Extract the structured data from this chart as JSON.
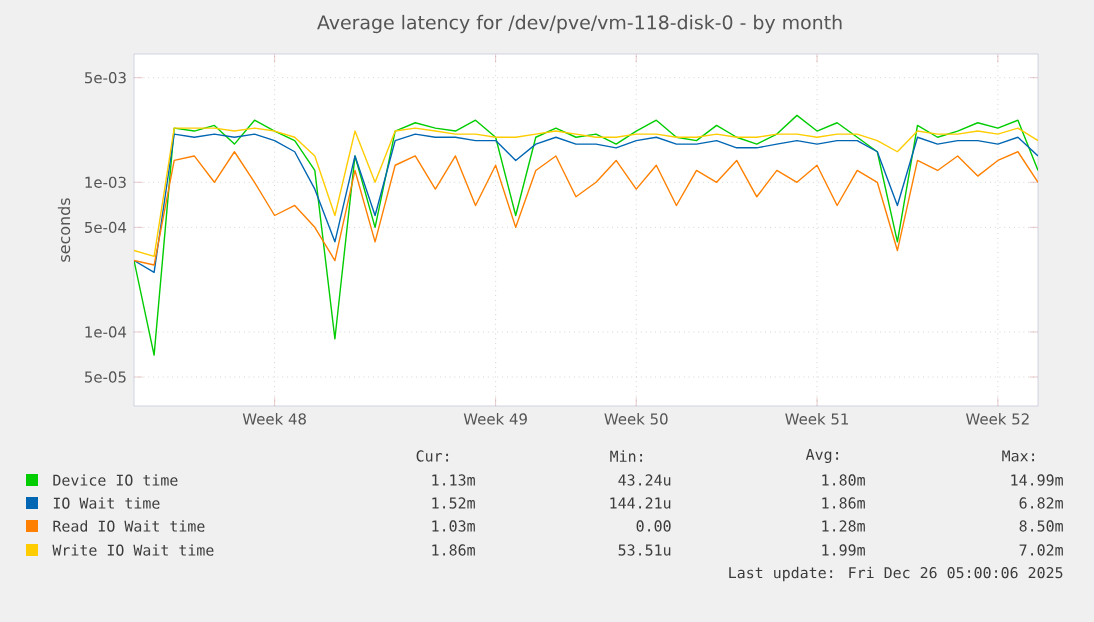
{
  "chart_data": {
    "type": "line",
    "title": "Average latency for /dev/pve/vm-118-disk-0 - by month",
    "ylabel": "seconds",
    "categories": [
      null,
      null,
      null,
      null,
      null,
      null,
      null,
      "Week 48",
      null,
      null,
      null,
      null,
      null,
      null,
      null,
      null,
      null,
      null,
      "Week 49",
      null,
      null,
      null,
      null,
      null,
      null,
      "Week 50",
      null,
      null,
      null,
      null,
      null,
      null,
      null,
      null,
      "Week 51",
      null,
      null,
      null,
      null,
      null,
      null,
      null,
      null,
      "Week 52",
      null,
      null
    ],
    "series": [
      {
        "name": "Device IO time",
        "color": "#00cc00",
        "values": [
          0.0003,
          7e-05,
          0.0023,
          0.0022,
          0.0024,
          0.0018,
          0.0026,
          0.0022,
          0.0019,
          0.0012,
          9e-05,
          0.0015,
          0.0005,
          0.0022,
          0.0025,
          0.0023,
          0.0022,
          0.0026,
          0.002,
          0.0006,
          0.002,
          0.0023,
          0.002,
          0.0021,
          0.0018,
          0.0022,
          0.0026,
          0.002,
          0.0019,
          0.0024,
          0.002,
          0.0018,
          0.0021,
          0.0028,
          0.0022,
          0.0025,
          0.002,
          0.0016,
          0.0004,
          0.0024,
          0.002,
          0.0022,
          0.0025,
          0.0023,
          0.0026,
          0.0012
        ]
      },
      {
        "name": "IO Wait time",
        "color": "#0066b3",
        "values": [
          0.0003,
          0.00025,
          0.0021,
          0.002,
          0.0021,
          0.002,
          0.0021,
          0.0019,
          0.0016,
          0.0009,
          0.0004,
          0.0015,
          0.0006,
          0.0019,
          0.0021,
          0.002,
          0.002,
          0.0019,
          0.0019,
          0.0014,
          0.0018,
          0.002,
          0.0018,
          0.0018,
          0.0017,
          0.0019,
          0.002,
          0.0018,
          0.0018,
          0.0019,
          0.0017,
          0.0017,
          0.0018,
          0.0019,
          0.0018,
          0.0019,
          0.0019,
          0.0016,
          0.0007,
          0.002,
          0.0018,
          0.0019,
          0.0019,
          0.0018,
          0.002,
          0.0015
        ]
      },
      {
        "name": "Read IO Wait time",
        "color": "#ff8000",
        "values": [
          0.0003,
          0.00028,
          0.0014,
          0.0015,
          0.001,
          0.0016,
          0.001,
          0.0006,
          0.0007,
          0.0005,
          0.0003,
          0.0012,
          0.0004,
          0.0013,
          0.0015,
          0.0009,
          0.0015,
          0.0007,
          0.0013,
          0.0005,
          0.0012,
          0.0015,
          0.0008,
          0.001,
          0.0014,
          0.0009,
          0.0013,
          0.0007,
          0.0012,
          0.001,
          0.0014,
          0.0008,
          0.0012,
          0.001,
          0.0013,
          0.0007,
          0.0012,
          0.001,
          0.00035,
          0.0014,
          0.0012,
          0.0015,
          0.0011,
          0.0014,
          0.0016,
          0.001
        ]
      },
      {
        "name": "Write IO Wait time",
        "color": "#ffcc00",
        "values": [
          0.00035,
          0.00032,
          0.0023,
          0.0023,
          0.0023,
          0.0022,
          0.0023,
          0.0022,
          0.002,
          0.0015,
          0.0006,
          0.0022,
          0.001,
          0.0022,
          0.0023,
          0.0022,
          0.0021,
          0.0021,
          0.002,
          0.002,
          0.0021,
          0.0022,
          0.0021,
          0.002,
          0.002,
          0.0021,
          0.0021,
          0.002,
          0.002,
          0.0021,
          0.002,
          0.002,
          0.0021,
          0.0021,
          0.002,
          0.0021,
          0.0021,
          0.0019,
          0.0016,
          0.0022,
          0.0021,
          0.0021,
          0.0022,
          0.0021,
          0.0023,
          0.0019
        ]
      }
    ],
    "ylim": [
      3.2e-05,
      0.0072
    ],
    "yticks": [
      {
        "value": 5e-05,
        "label": "5e-05"
      },
      {
        "value": 0.0001,
        "label": "1e-04"
      },
      {
        "value": 0.0005,
        "label": "5e-04"
      },
      {
        "value": 0.001,
        "label": "1e-03"
      },
      {
        "value": 0.005,
        "label": "5e-03"
      }
    ],
    "log": "y",
    "grid": true,
    "legend": "bottom",
    "marker": "none",
    "line_style": "solid",
    "annotations": [
      "Cur:",
      "Min:",
      "Avg:",
      "Max:",
      "1.13m",
      "43.24u",
      "1.80m",
      "14.99m",
      "1.52m",
      "144.21u",
      "1.86m",
      "6.82m",
      "1.03m",
      "0.00",
      "1.28m",
      "8.50m",
      "1.86m",
      "53.51u",
      "1.99m",
      "7.02m",
      "Last update: Fri Dec 26 05:00:06 2025"
    ]
  }
}
